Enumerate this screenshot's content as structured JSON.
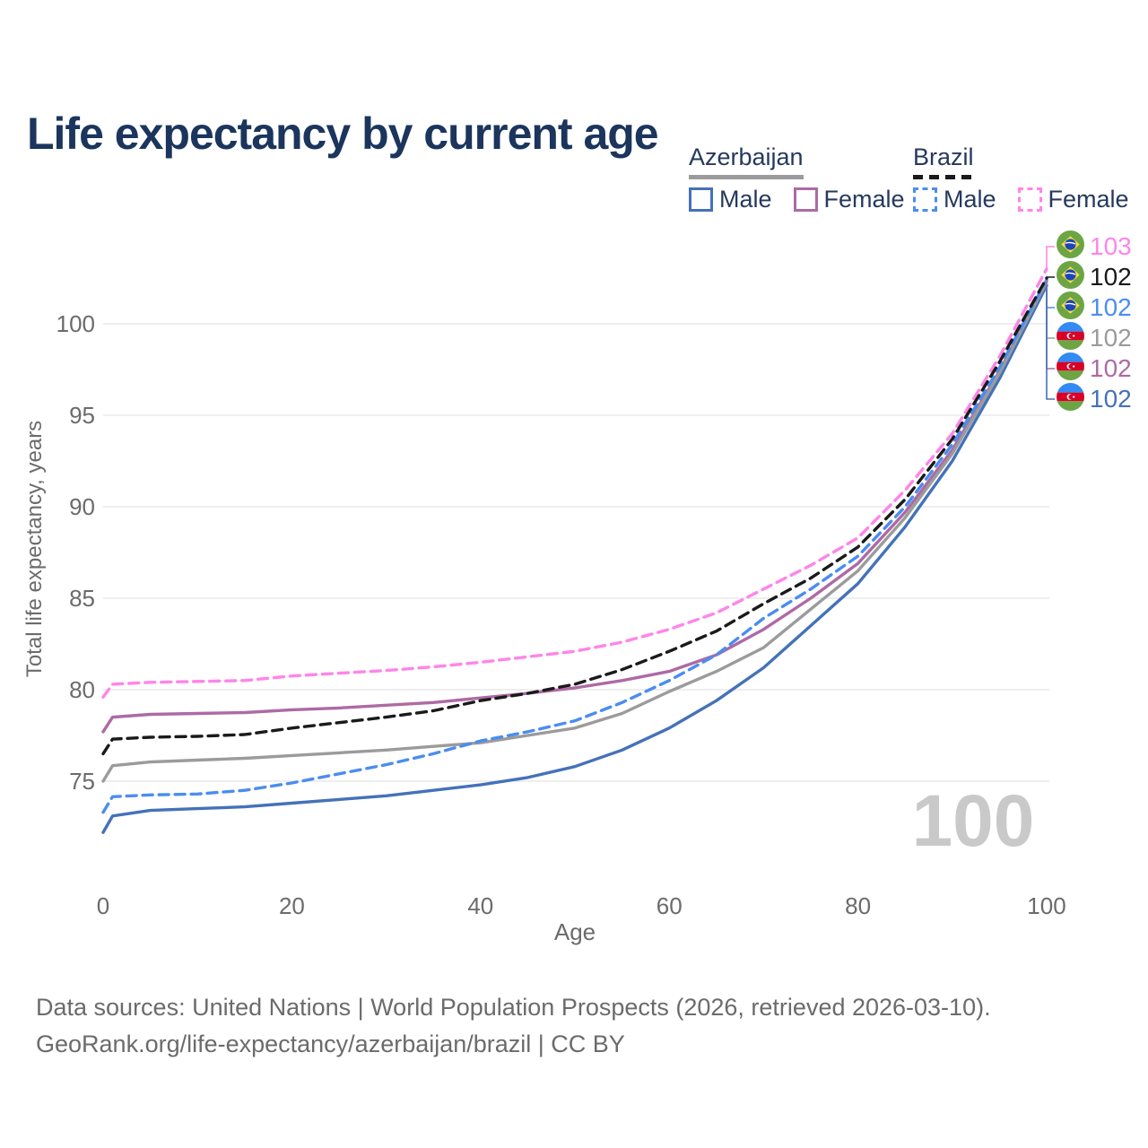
{
  "title": "Life expectancy by current age",
  "legend": {
    "groups": [
      {
        "name": "Azerbaijan",
        "underline_style": "solid",
        "items": [
          {
            "label": "Male"
          },
          {
            "label": "Female"
          }
        ]
      },
      {
        "name": "Brazil",
        "underline_style": "dashed",
        "items": [
          {
            "label": "Male"
          },
          {
            "label": "Female"
          }
        ]
      }
    ]
  },
  "chart_data": {
    "type": "line",
    "title": "Life expectancy by current age",
    "xlabel": "Age",
    "ylabel": "Total life expectancy, years",
    "xticks": [
      0,
      20,
      40,
      60,
      80,
      100
    ],
    "yticks": [
      75,
      80,
      85,
      90,
      95,
      100
    ],
    "xlim": [
      0,
      100
    ],
    "ylim": [
      71,
      104
    ],
    "grid": true,
    "legend_position": "top-right",
    "watermark": "100",
    "x": [
      0,
      1,
      5,
      10,
      15,
      20,
      25,
      30,
      35,
      40,
      45,
      50,
      55,
      60,
      65,
      70,
      75,
      80,
      85,
      90,
      95,
      100
    ],
    "series": [
      {
        "id": "azerbaijan-male",
        "name": "Azerbaijan Male",
        "color": "#4472b9",
        "dash": null,
        "values": [
          72.2,
          73.1,
          73.4,
          73.5,
          73.6,
          73.8,
          74.0,
          74.2,
          74.5,
          74.8,
          75.2,
          75.8,
          76.7,
          77.9,
          79.4,
          81.2,
          83.5,
          85.8,
          88.9,
          92.5,
          97.0,
          102.1
        ]
      },
      {
        "id": "azerbaijan-female",
        "name": "Azerbaijan Female",
        "color": "#ad6aa5",
        "dash": null,
        "values": [
          77.7,
          78.5,
          78.65,
          78.7,
          78.75,
          78.9,
          79.0,
          79.15,
          79.3,
          79.55,
          79.8,
          80.1,
          80.5,
          81.0,
          81.9,
          83.3,
          85.0,
          86.9,
          89.7,
          93.1,
          97.4,
          102.4
        ]
      },
      {
        "id": "azerbaijan-total",
        "name": "Azerbaijan",
        "color": "#9b9b9b",
        "dash": null,
        "values": [
          75.0,
          75.85,
          76.05,
          76.15,
          76.25,
          76.4,
          76.55,
          76.7,
          76.9,
          77.1,
          77.5,
          77.9,
          78.7,
          79.9,
          81.0,
          82.3,
          84.4,
          86.5,
          89.4,
          92.9,
          97.3,
          102.3
        ]
      },
      {
        "id": "brazil-male",
        "name": "Brazil Male",
        "color": "#4a8df0",
        "dash": "11 7",
        "values": [
          73.3,
          74.15,
          74.25,
          74.3,
          74.5,
          74.9,
          75.4,
          75.9,
          76.5,
          77.2,
          77.7,
          78.3,
          79.3,
          80.5,
          81.9,
          83.9,
          85.5,
          87.3,
          90.0,
          93.4,
          97.6,
          102.4
        ]
      },
      {
        "id": "brazil-female",
        "name": "Brazil Female",
        "color": "#ff85e7",
        "dash": "11 7",
        "values": [
          79.6,
          80.3,
          80.4,
          80.45,
          80.5,
          80.75,
          80.9,
          81.05,
          81.25,
          81.5,
          81.8,
          82.1,
          82.6,
          83.3,
          84.2,
          85.5,
          86.8,
          88.3,
          90.9,
          94.0,
          98.2,
          103.0
        ]
      },
      {
        "id": "brazil-total",
        "name": "Brazil",
        "color": "#1a1a1a",
        "dash": "11 7",
        "values": [
          76.5,
          77.3,
          77.4,
          77.45,
          77.55,
          77.9,
          78.2,
          78.5,
          78.85,
          79.4,
          79.8,
          80.3,
          81.1,
          82.1,
          83.2,
          84.7,
          86.1,
          87.8,
          90.4,
          93.7,
          97.9,
          102.5
        ]
      }
    ],
    "end_labels": [
      {
        "series": "brazil-female",
        "flag": "brazil",
        "value": "103",
        "y": 275
      },
      {
        "series": "brazil-total",
        "flag": "brazil",
        "value": "102",
        "y": 309
      },
      {
        "series": "brazil-male",
        "flag": "brazil",
        "value": "102",
        "y": 343
      },
      {
        "series": "azerbaijan-total",
        "flag": "azerbaijan",
        "value": "102",
        "y": 377
      },
      {
        "series": "azerbaijan-female",
        "flag": "azerbaijan",
        "value": "102",
        "y": 411
      },
      {
        "series": "azerbaijan-male",
        "flag": "azerbaijan",
        "value": "102",
        "y": 445
      }
    ]
  },
  "footer": {
    "line1": "Data sources: United Nations | World Population Prospects (2026, retrieved 2026-03-10).",
    "line2": "GeoRank.org/life-expectancy/azerbaijan/brazil | CC BY"
  },
  "colors": {
    "title": "#1b355d",
    "legend_text": "#26395e",
    "tick": "#6b6b6b",
    "grid": "#e3e3e3",
    "watermark": "#c9c9c9",
    "footer": "#6b6b6b"
  }
}
